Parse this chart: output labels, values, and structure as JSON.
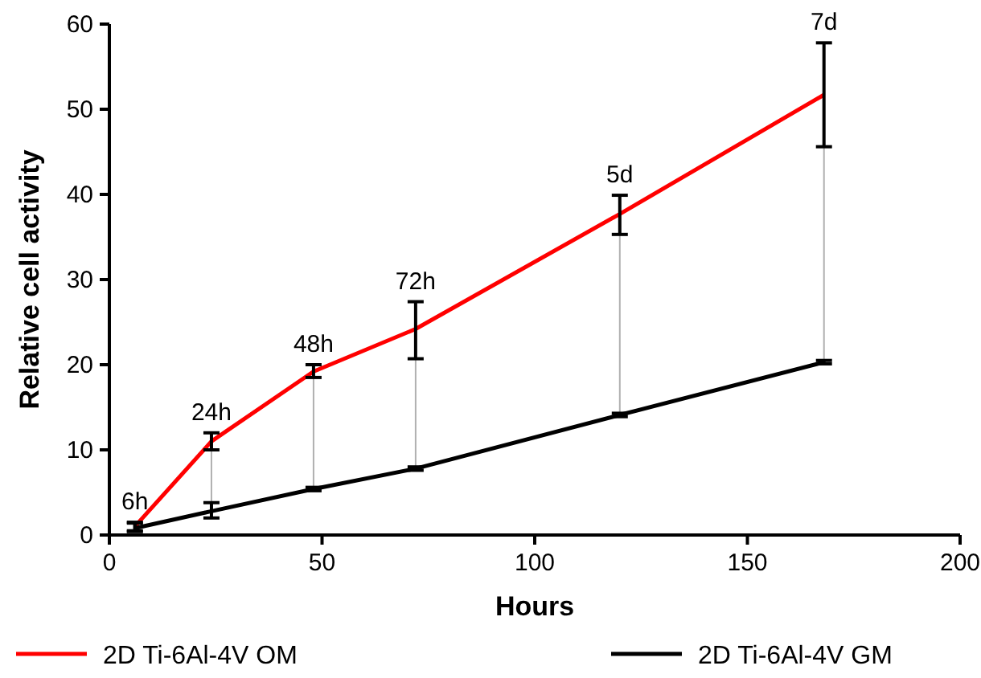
{
  "chart_data": {
    "type": "line",
    "xlabel": "Hours",
    "ylabel": "Relative cell activity",
    "xlim": [
      0,
      200
    ],
    "xticks": [
      0,
      50,
      100,
      150,
      200
    ],
    "ylim": [
      0,
      60
    ],
    "yticks": [
      0,
      10,
      20,
      30,
      40,
      50,
      60
    ],
    "x": [
      6,
      24,
      48,
      72,
      120,
      168
    ],
    "series": [
      {
        "name": "2D Ti-6Al-4V OM",
        "color": "#ff0000",
        "values": [
          1,
          11,
          19.2,
          24.2,
          37.7,
          51.7
        ],
        "errors": [
          [
            0.5,
            1.5
          ],
          [
            10,
            12
          ],
          [
            18.5,
            20
          ],
          [
            20.7,
            27.4
          ],
          [
            35.3,
            39.9
          ],
          [
            45.6,
            57.8
          ]
        ]
      },
      {
        "name": "2D Ti-6Al-4V GM",
        "color": "#000000",
        "values": [
          0.8,
          2.8,
          5.4,
          7.8,
          14.1,
          20.3
        ],
        "errors": [
          [
            0.4,
            1.4
          ],
          [
            2,
            3.8
          ],
          [
            5.2,
            5.6
          ],
          [
            7.6,
            8
          ],
          [
            13.9,
            14.3
          ],
          [
            20.1,
            20.5
          ]
        ]
      }
    ],
    "annotations": [
      {
        "text": "6h",
        "x": 6,
        "y": 1
      },
      {
        "text": "24h",
        "x": 24,
        "y": 11
      },
      {
        "text": "48h",
        "x": 48,
        "y": 19.2
      },
      {
        "text": "72h",
        "x": 72,
        "y": 24.2
      },
      {
        "text": "5d",
        "x": 120,
        "y": 37.7
      },
      {
        "text": "7d",
        "x": 168,
        "y": 51.7
      }
    ],
    "legend": "bottom",
    "grid": false,
    "marker": "none",
    "line_style": "solid"
  }
}
